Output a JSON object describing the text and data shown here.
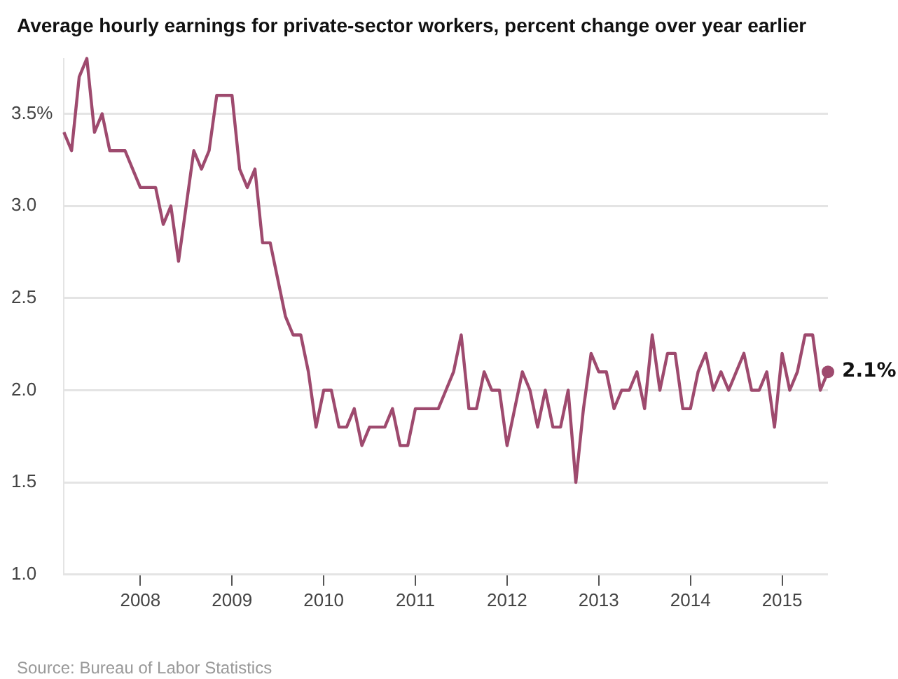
{
  "chart_data": {
    "type": "line",
    "title": "Average hourly earnings for private-sector workers, percent change over year earlier",
    "x": [
      "2007-03",
      "2007-04",
      "2007-05",
      "2007-06",
      "2007-07",
      "2007-08",
      "2007-09",
      "2007-10",
      "2007-11",
      "2007-12",
      "2008-01",
      "2008-02",
      "2008-03",
      "2008-04",
      "2008-05",
      "2008-06",
      "2008-07",
      "2008-08",
      "2008-09",
      "2008-10",
      "2008-11",
      "2008-12",
      "2009-01",
      "2009-02",
      "2009-03",
      "2009-04",
      "2009-05",
      "2009-06",
      "2009-07",
      "2009-08",
      "2009-09",
      "2009-10",
      "2009-11",
      "2009-12",
      "2010-01",
      "2010-02",
      "2010-03",
      "2010-04",
      "2010-05",
      "2010-06",
      "2010-07",
      "2010-08",
      "2010-09",
      "2010-10",
      "2010-11",
      "2010-12",
      "2011-01",
      "2011-02",
      "2011-03",
      "2011-04",
      "2011-05",
      "2011-06",
      "2011-07",
      "2011-08",
      "2011-09",
      "2011-10",
      "2011-11",
      "2011-12",
      "2012-01",
      "2012-02",
      "2012-03",
      "2012-04",
      "2012-05",
      "2012-06",
      "2012-07",
      "2012-08",
      "2012-09",
      "2012-10",
      "2012-11",
      "2012-12",
      "2013-01",
      "2013-02",
      "2013-03",
      "2013-04",
      "2013-05",
      "2013-06",
      "2013-07",
      "2013-08",
      "2013-09",
      "2013-10",
      "2013-11",
      "2013-12",
      "2014-01",
      "2014-02",
      "2014-03",
      "2014-04",
      "2014-05",
      "2014-06",
      "2014-07",
      "2014-08",
      "2014-09",
      "2014-10",
      "2014-11",
      "2014-12",
      "2015-01",
      "2015-02",
      "2015-03",
      "2015-04",
      "2015-05",
      "2015-06",
      "2015-07"
    ],
    "series": [
      {
        "color": "#9e4a6e",
        "values": [
          3.4,
          3.3,
          3.7,
          3.8,
          3.4,
          3.5,
          3.3,
          3.3,
          3.3,
          3.2,
          3.1,
          3.1,
          3.1,
          2.9,
          3.0,
          2.7,
          3.0,
          3.3,
          3.2,
          3.3,
          3.6,
          3.6,
          3.6,
          3.2,
          3.1,
          3.2,
          2.8,
          2.8,
          2.6,
          2.4,
          2.3,
          2.3,
          2.1,
          1.8,
          2.0,
          2.0,
          1.8,
          1.8,
          1.9,
          1.7,
          1.8,
          1.8,
          1.8,
          1.9,
          1.7,
          1.7,
          1.9,
          1.9,
          1.9,
          1.9,
          2.0,
          2.1,
          2.3,
          1.9,
          1.9,
          2.1,
          2.0,
          2.0,
          1.7,
          1.9,
          2.1,
          2.0,
          1.8,
          2.0,
          1.8,
          1.8,
          2.0,
          1.5,
          1.9,
          2.2,
          2.1,
          2.1,
          1.9,
          2.0,
          2.0,
          2.1,
          1.9,
          2.3,
          2.0,
          2.2,
          2.2,
          1.9,
          1.9,
          2.1,
          2.2,
          2.0,
          2.1,
          2.0,
          2.1,
          2.2,
          2.0,
          2.0,
          2.1,
          1.8,
          2.2,
          2.0,
          2.1,
          2.3,
          2.3,
          2.0,
          2.1
        ]
      }
    ],
    "xlim": [
      "2007-03",
      "2015-07"
    ],
    "xticks": [
      "2008",
      "2009",
      "2010",
      "2011",
      "2012",
      "2013",
      "2014",
      "2015"
    ],
    "ylim": [
      1,
      3.8
    ],
    "yticks": [
      {
        "value": 1,
        "label": "1.0"
      },
      1.5,
      {
        "value": 2,
        "label": "2.0"
      },
      2.5,
      {
        "value": 3,
        "label": "3.0"
      },
      {
        "value": 3.5,
        "label": "3.5%"
      }
    ],
    "grid": "y",
    "legend": false,
    "marker": "none",
    "line_style": "solid",
    "annotations": [
      {
        "text": "2.1%",
        "x": "2015-07",
        "y": 2.1
      },
      "Source: Bureau of Labor Statistics"
    ]
  }
}
